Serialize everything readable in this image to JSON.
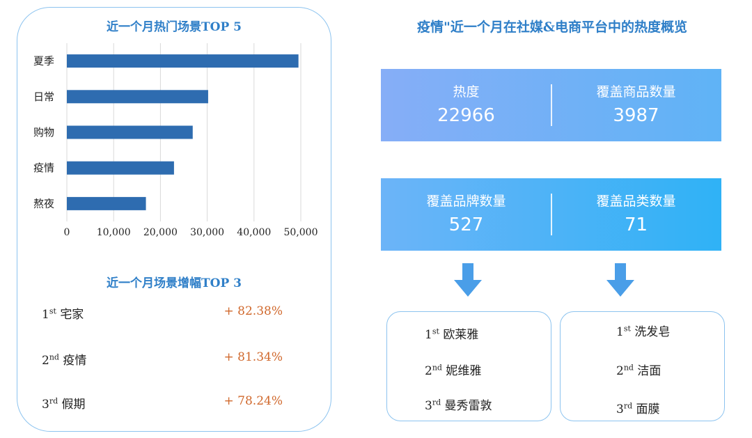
{
  "left": {
    "chart_title": "近一个月热门场景TOP 5",
    "growth_title": "近一个月场景增幅TOP 3",
    "growth": [
      {
        "rank_num": "1",
        "rank_suffix": "st",
        "name": "宅家",
        "value": "+ 82.38%"
      },
      {
        "rank_num": "2",
        "rank_suffix": "nd",
        "name": "疫情",
        "value": "+ 81.34%"
      },
      {
        "rank_num": "3",
        "rank_suffix": "rd",
        "name": "假期",
        "value": "+ 78.24%"
      }
    ]
  },
  "chart_data": {
    "type": "bar",
    "orientation": "horizontal",
    "title": "近一个月热门场景TOP 5",
    "categories": [
      "夏季",
      "日常",
      "购物",
      "疫情",
      "熬夜"
    ],
    "values": [
      49500,
      30200,
      26900,
      22900,
      16900
    ],
    "xlim": [
      0,
      50000
    ],
    "ticks": [
      0,
      10000,
      20000,
      30000,
      40000,
      50000
    ],
    "tick_labels": [
      "0",
      "10,000",
      "20,000",
      "30,000",
      "40,000",
      "50,000"
    ],
    "grid": "vertical",
    "bar_color": "#2e6cb0"
  },
  "right": {
    "title": "疫情\"近一个月在社媒&电商平台中的热度概览",
    "stats": [
      {
        "label": "热度",
        "value": "22966"
      },
      {
        "label": "覆盖商品数量",
        "value": "3987"
      },
      {
        "label": "覆盖品牌数量",
        "value": "527"
      },
      {
        "label": "覆盖品类数量",
        "value": "71"
      }
    ],
    "brands": [
      {
        "rank_num": "1",
        "rank_suffix": "st",
        "name": "欧莱雅"
      },
      {
        "rank_num": "2",
        "rank_suffix": "nd",
        "name": "妮维雅"
      },
      {
        "rank_num": "3",
        "rank_suffix": "rd",
        "name": "曼秀雷敦"
      }
    ],
    "categories": [
      {
        "rank_num": "1",
        "rank_suffix": "st",
        "name": "洗发皂"
      },
      {
        "rank_num": "2",
        "rank_suffix": "nd",
        "name": "洁面"
      },
      {
        "rank_num": "3",
        "rank_suffix": "rd",
        "name": "面膜"
      }
    ],
    "arrow_color": "#4a9ee8"
  }
}
